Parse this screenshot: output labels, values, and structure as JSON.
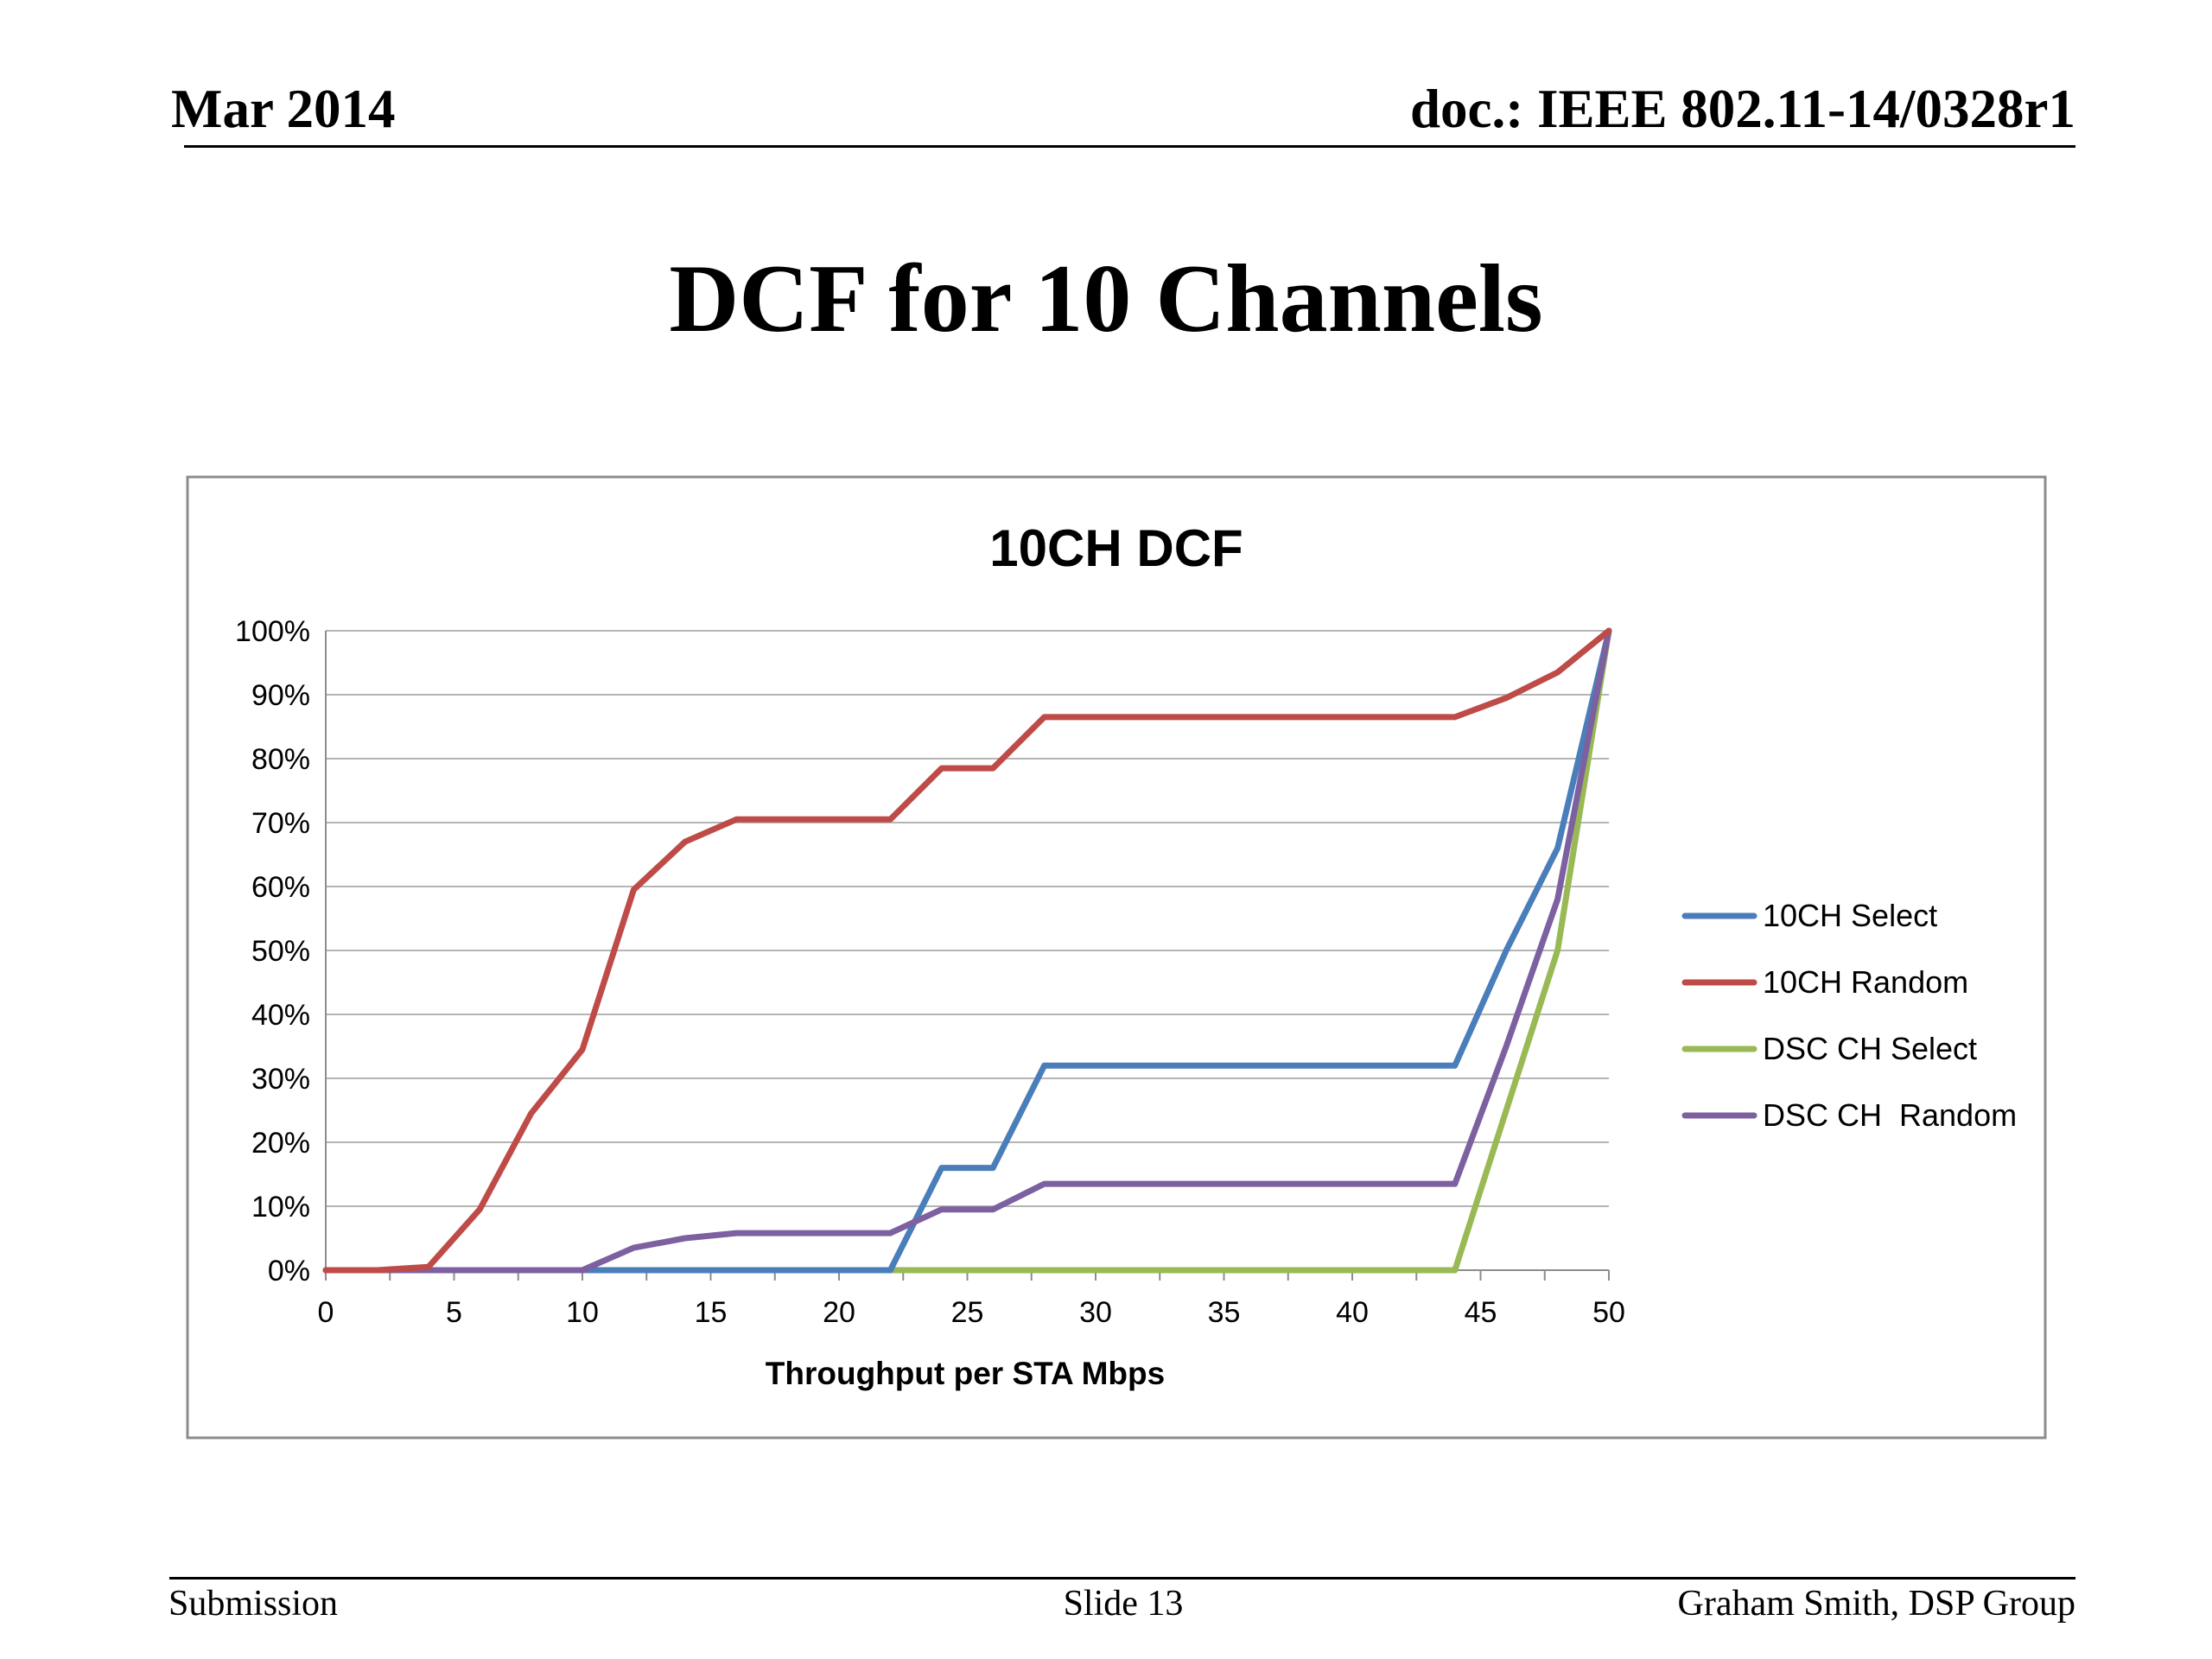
{
  "header": {
    "date": "Mar 2014",
    "doc": "doc.: IEEE 802.11-14/0328r1"
  },
  "slide": {
    "title": "DCF for 10 Channels"
  },
  "footer": {
    "left": "Submission",
    "center": "Slide 13",
    "right": "Graham Smith, DSP Group"
  },
  "chart_data": {
    "type": "line",
    "title": "10CH DCF",
    "xlabel": "Throughput per STA Mbps",
    "ylabel": "",
    "xlim": [
      0,
      50
    ],
    "ylim": [
      0,
      1
    ],
    "x_ticks": [
      0,
      5,
      10,
      15,
      20,
      25,
      30,
      35,
      40,
      45,
      50
    ],
    "x_tick_labels": [
      "0",
      "5",
      "10",
      "15",
      "20",
      "25",
      "30",
      "35",
      "40",
      "45",
      "50"
    ],
    "y_ticks": [
      0,
      0.1,
      0.2,
      0.3,
      0.4,
      0.5,
      0.6,
      0.7,
      0.8,
      0.9,
      1.0
    ],
    "y_tick_labels": [
      "0%",
      "10%",
      "20%",
      "30%",
      "40%",
      "50%",
      "60%",
      "70%",
      "80%",
      "90%",
      "100%"
    ],
    "grid": true,
    "legend_position": "right",
    "series": [
      {
        "name": "10CH Select",
        "color": "#4a7ebb",
        "points": [
          [
            0,
            0
          ],
          [
            2,
            0
          ],
          [
            4,
            0
          ],
          [
            6,
            0
          ],
          [
            8,
            0
          ],
          [
            10,
            0
          ],
          [
            12,
            0
          ],
          [
            14,
            0
          ],
          [
            16,
            0
          ],
          [
            18,
            0
          ],
          [
            20,
            0
          ],
          [
            22,
            0
          ],
          [
            24,
            0.16
          ],
          [
            26,
            0.16
          ],
          [
            28,
            0.32
          ],
          [
            30,
            0.32
          ],
          [
            32,
            0.32
          ],
          [
            34,
            0.32
          ],
          [
            36,
            0.32
          ],
          [
            38,
            0.32
          ],
          [
            40,
            0.32
          ],
          [
            42,
            0.32
          ],
          [
            44,
            0.32
          ],
          [
            46,
            0.5
          ],
          [
            48,
            0.66
          ],
          [
            50,
            1.0
          ]
        ]
      },
      {
        "name": "10CH Random",
        "color": "#be4b48",
        "points": [
          [
            0,
            0
          ],
          [
            2,
            0
          ],
          [
            4,
            0.005
          ],
          [
            6,
            0.095
          ],
          [
            8,
            0.245
          ],
          [
            10,
            0.345
          ],
          [
            12,
            0.595
          ],
          [
            14,
            0.67
          ],
          [
            16,
            0.705
          ],
          [
            18,
            0.705
          ],
          [
            20,
            0.705
          ],
          [
            22,
            0.705
          ],
          [
            24,
            0.785
          ],
          [
            26,
            0.785
          ],
          [
            28,
            0.865
          ],
          [
            30,
            0.865
          ],
          [
            32,
            0.865
          ],
          [
            34,
            0.865
          ],
          [
            36,
            0.865
          ],
          [
            38,
            0.865
          ],
          [
            40,
            0.865
          ],
          [
            42,
            0.865
          ],
          [
            44,
            0.865
          ],
          [
            46,
            0.895
          ],
          [
            48,
            0.935
          ],
          [
            50,
            1.0
          ]
        ]
      },
      {
        "name": "DSC CH Select",
        "color": "#98b954",
        "points": [
          [
            0,
            0
          ],
          [
            2,
            0
          ],
          [
            4,
            0
          ],
          [
            6,
            0
          ],
          [
            8,
            0
          ],
          [
            10,
            0
          ],
          [
            12,
            0
          ],
          [
            14,
            0
          ],
          [
            16,
            0
          ],
          [
            18,
            0
          ],
          [
            20,
            0
          ],
          [
            22,
            0
          ],
          [
            24,
            0
          ],
          [
            26,
            0
          ],
          [
            28,
            0
          ],
          [
            30,
            0
          ],
          [
            32,
            0
          ],
          [
            34,
            0
          ],
          [
            36,
            0
          ],
          [
            38,
            0
          ],
          [
            40,
            0
          ],
          [
            42,
            0
          ],
          [
            44,
            0
          ],
          [
            46,
            0.25
          ],
          [
            48,
            0.5
          ],
          [
            50,
            1.0
          ]
        ]
      },
      {
        "name": "DSC CH  Random",
        "color": "#7d60a0",
        "points": [
          [
            0,
            0
          ],
          [
            2,
            0
          ],
          [
            4,
            0
          ],
          [
            6,
            0
          ],
          [
            8,
            0
          ],
          [
            10,
            0
          ],
          [
            12,
            0.035
          ],
          [
            14,
            0.05
          ],
          [
            16,
            0.058
          ],
          [
            18,
            0.058
          ],
          [
            20,
            0.058
          ],
          [
            22,
            0.058
          ],
          [
            24,
            0.095
          ],
          [
            26,
            0.095
          ],
          [
            28,
            0.135
          ],
          [
            30,
            0.135
          ],
          [
            32,
            0.135
          ],
          [
            34,
            0.135
          ],
          [
            36,
            0.135
          ],
          [
            38,
            0.135
          ],
          [
            40,
            0.135
          ],
          [
            42,
            0.135
          ],
          [
            44,
            0.135
          ],
          [
            46,
            0.35
          ],
          [
            48,
            0.58
          ],
          [
            50,
            1.0
          ]
        ]
      }
    ]
  }
}
